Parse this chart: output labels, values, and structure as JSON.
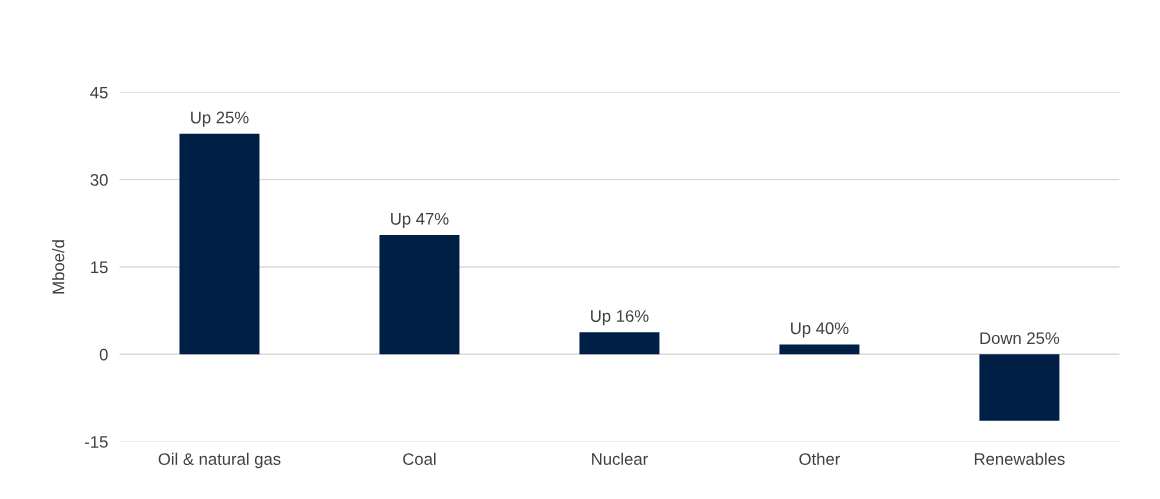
{
  "chart_data": {
    "type": "bar",
    "ylabel": "Mboe/d",
    "categories": [
      "Oil & natural gas",
      "Coal",
      "Nuclear",
      "Other",
      "Renewables"
    ],
    "values": [
      37.9,
      20.5,
      3.8,
      1.7,
      -11.4
    ],
    "value_labels": [
      "Up 25%",
      "Up 47%",
      "Up 16%",
      "Up 40%",
      "Down 25%"
    ],
    "color": "#001f45",
    "ylim": [
      -15,
      45
    ],
    "yticks": [
      -15,
      0,
      15,
      30,
      45
    ],
    "grid": "y"
  }
}
